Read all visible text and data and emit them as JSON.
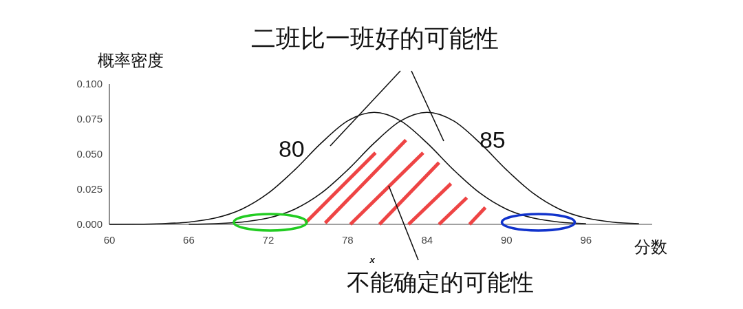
{
  "chart_data": {
    "type": "line",
    "title": "二班比一班好的可能性",
    "xlabel": "分数",
    "ylabel": "概率密度",
    "annotations": [
      "x",
      "不能确定的可能性"
    ],
    "series": [
      {
        "name": "80",
        "color": "#111111",
        "x": [
          60,
          62,
          64,
          66,
          68,
          70,
          72,
          74,
          76,
          78,
          80,
          82,
          84,
          86,
          88,
          90,
          92,
          94,
          96
        ],
        "values": [
          0.0,
          0.0001,
          0.0005,
          0.0016,
          0.0045,
          0.0108,
          0.0222,
          0.0388,
          0.0579,
          0.0737,
          0.0798,
          0.0737,
          0.0579,
          0.0388,
          0.0222,
          0.0108,
          0.0045,
          0.0016,
          0.0005
        ]
      },
      {
        "name": "85",
        "color": "#111111",
        "x": [
          66,
          68,
          70,
          72,
          74,
          76,
          78,
          80,
          82,
          84,
          86,
          88,
          90,
          92,
          94,
          96,
          98,
          100
        ],
        "values": [
          0.0001,
          0.0005,
          0.0016,
          0.0045,
          0.0108,
          0.0222,
          0.0388,
          0.0579,
          0.0737,
          0.0798,
          0.0737,
          0.0579,
          0.0388,
          0.0222,
          0.0108,
          0.0045,
          0.0016,
          0.0005
        ]
      }
    ],
    "xlim": [
      60,
      101
    ],
    "ylim": [
      0,
      0.1
    ],
    "xticks": [
      60,
      66,
      72,
      78,
      84,
      90,
      96
    ],
    "yticks": [
      {
        "value": 0,
        "label": "0.000"
      },
      {
        "value": 0.025,
        "label": "0.025"
      },
      {
        "value": 0.05,
        "label": "0.050"
      },
      {
        "value": 0.075,
        "label": "0.075"
      },
      {
        "value": 0.1,
        "label": "0.100"
      }
    ],
    "grid": false,
    "marker": "none",
    "line_style": "solid"
  }
}
